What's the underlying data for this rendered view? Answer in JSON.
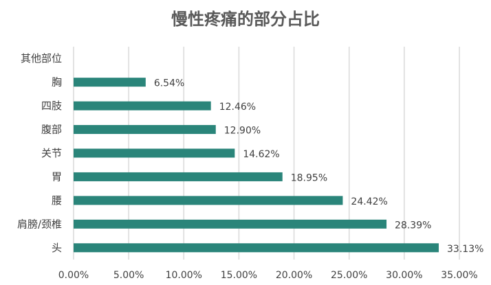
{
  "chart_data": {
    "type": "bar",
    "orientation": "horizontal",
    "title": "慢性疼痛的部分占比",
    "categories": [
      "其他部位",
      "胸",
      "四肢",
      "腹部",
      "关节",
      "胃",
      "腰",
      "肩膀/颈椎",
      "头"
    ],
    "values": [
      null,
      6.54,
      12.46,
      12.9,
      14.62,
      18.95,
      24.42,
      28.39,
      33.13
    ],
    "data_labels": [
      "",
      "6.54%",
      "12.46%",
      "12.90%",
      "14.62%",
      "18.95%",
      "24.42%",
      "28.39%",
      "33.13%"
    ],
    "x_ticks": [
      "0.00%",
      "5.00%",
      "10.00%",
      "15.00%",
      "20.00%",
      "25.00%",
      "30.00%",
      "35.00%"
    ],
    "xlim": [
      0,
      35
    ],
    "xlabel": "",
    "ylabel": "",
    "grid": true,
    "bar_color": "#2A857A",
    "grid_color": "#D9D9D9"
  }
}
